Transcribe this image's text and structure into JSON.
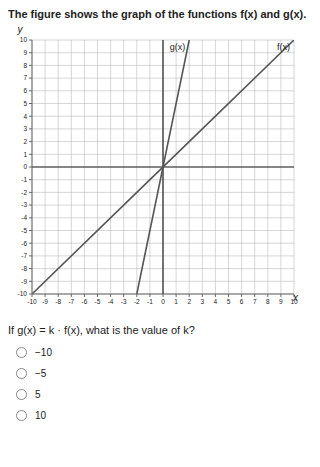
{
  "chart_data": {
    "type": "line",
    "title": "The figure shows the graph of the functions f(x) and g(x).",
    "x_label": "x",
    "y_label": "y",
    "x": [
      -10,
      -2,
      2,
      10
    ],
    "series": [
      {
        "name": "f(x)",
        "color": "#555555",
        "values": [
          -10,
          -2,
          2,
          10
        ]
      },
      {
        "name": "g(x)",
        "color": "#555555",
        "values": [
          null,
          -10,
          10,
          null
        ]
      }
    ],
    "xlim": [
      -10,
      10
    ],
    "ylim": [
      -10,
      10
    ],
    "xticks": [
      -10,
      -9,
      -8,
      -7,
      -6,
      -5,
      -4,
      -3,
      -2,
      -1,
      0,
      1,
      2,
      3,
      4,
      5,
      6,
      7,
      8,
      9,
      10
    ],
    "yticks": [
      -10,
      -9,
      -8,
      -7,
      -6,
      -5,
      -4,
      -3,
      -2,
      -1,
      0,
      1,
      2,
      3,
      4,
      5,
      6,
      7,
      8,
      9,
      10
    ],
    "grid": true,
    "question": "If g(x) = k · f(x), what is the value of k?",
    "options": [
      "−10",
      "−5",
      "5",
      "10"
    ]
  }
}
